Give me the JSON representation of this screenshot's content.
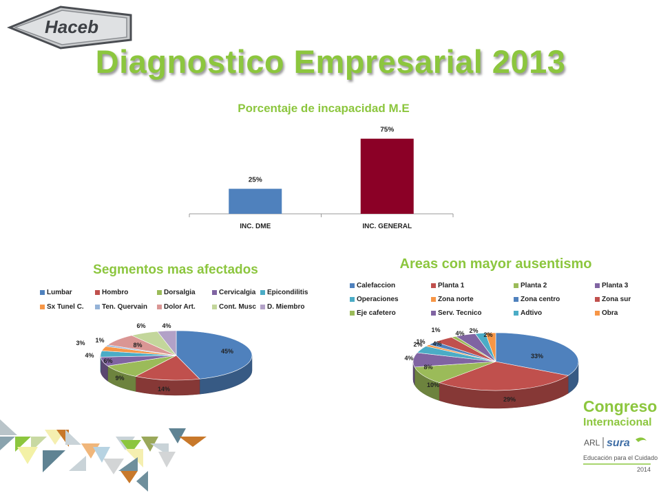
{
  "logo": {
    "text": "Haceb"
  },
  "title": "Diagnostico Empresarial 2013",
  "brand": {
    "line1": "Congreso",
    "line2": "Internacional",
    "arl": "ARL",
    "sura": "sura",
    "tagline": "Educación para el Cuidado",
    "year": "2014"
  },
  "chart_data": [
    {
      "type": "bar",
      "title": "Porcentaje de incapacidad M.E",
      "categories": [
        "INC. DME",
        "INC. GENERAL"
      ],
      "values": [
        25,
        75
      ],
      "data_labels": [
        "25%",
        "75%"
      ],
      "colors": [
        "#4f81bd",
        "#8b0026"
      ],
      "ylim": [
        0,
        100
      ],
      "grid": false
    },
    {
      "type": "pie",
      "title": "Segmentos mas afectados",
      "categories": [
        "Lumbar",
        "Hombro",
        "Dorsalgia",
        "Cervicalgia",
        "Epicondilitis",
        "Sx Tunel C.",
        "Ten. Quervain",
        "Dolor Art.",
        "Cont. Musc",
        "D. Miembro"
      ],
      "values": [
        45,
        14,
        9,
        6,
        4,
        3,
        1,
        8,
        6,
        4
      ],
      "data_labels": [
        "45%",
        "14%",
        "9%",
        "6%",
        "4%",
        "3%",
        "1%",
        "8%",
        "6%",
        "4%"
      ],
      "colors": [
        "#4f81bd",
        "#c0504d",
        "#9bbb59",
        "#8064a2",
        "#4bacc6",
        "#f79646",
        "#95b3d7",
        "#da9694",
        "#c3d69b",
        "#b2a1c7"
      ],
      "legend_position": "top"
    },
    {
      "type": "pie",
      "title": "Areas  con mayor ausentismo",
      "categories": [
        "Calefaccion",
        "Planta 1",
        "Planta 2",
        "Planta 3",
        "Operaciones",
        "Zona norte",
        "Zona centro",
        "Zona sur",
        "Eje cafetero",
        "Serv. Tecnico",
        "Adtivo",
        "Obra"
      ],
      "values": [
        33,
        29,
        10,
        8,
        4,
        1,
        2,
        4,
        1,
        4,
        2,
        2
      ],
      "data_labels": [
        "33%",
        "29%",
        "10%",
        "8%",
        "4%",
        "1%",
        "2%",
        "4%",
        "1%",
        "4%",
        "2%",
        "2%"
      ],
      "colors": [
        "#4f81bd",
        "#c0504d",
        "#9bbb59",
        "#8064a2",
        "#4bacc6",
        "#f79646",
        "#4f81bd",
        "#c0504d",
        "#9bbb59",
        "#8064a2",
        "#4bacc6",
        "#f79646"
      ],
      "legend_position": "top"
    }
  ]
}
